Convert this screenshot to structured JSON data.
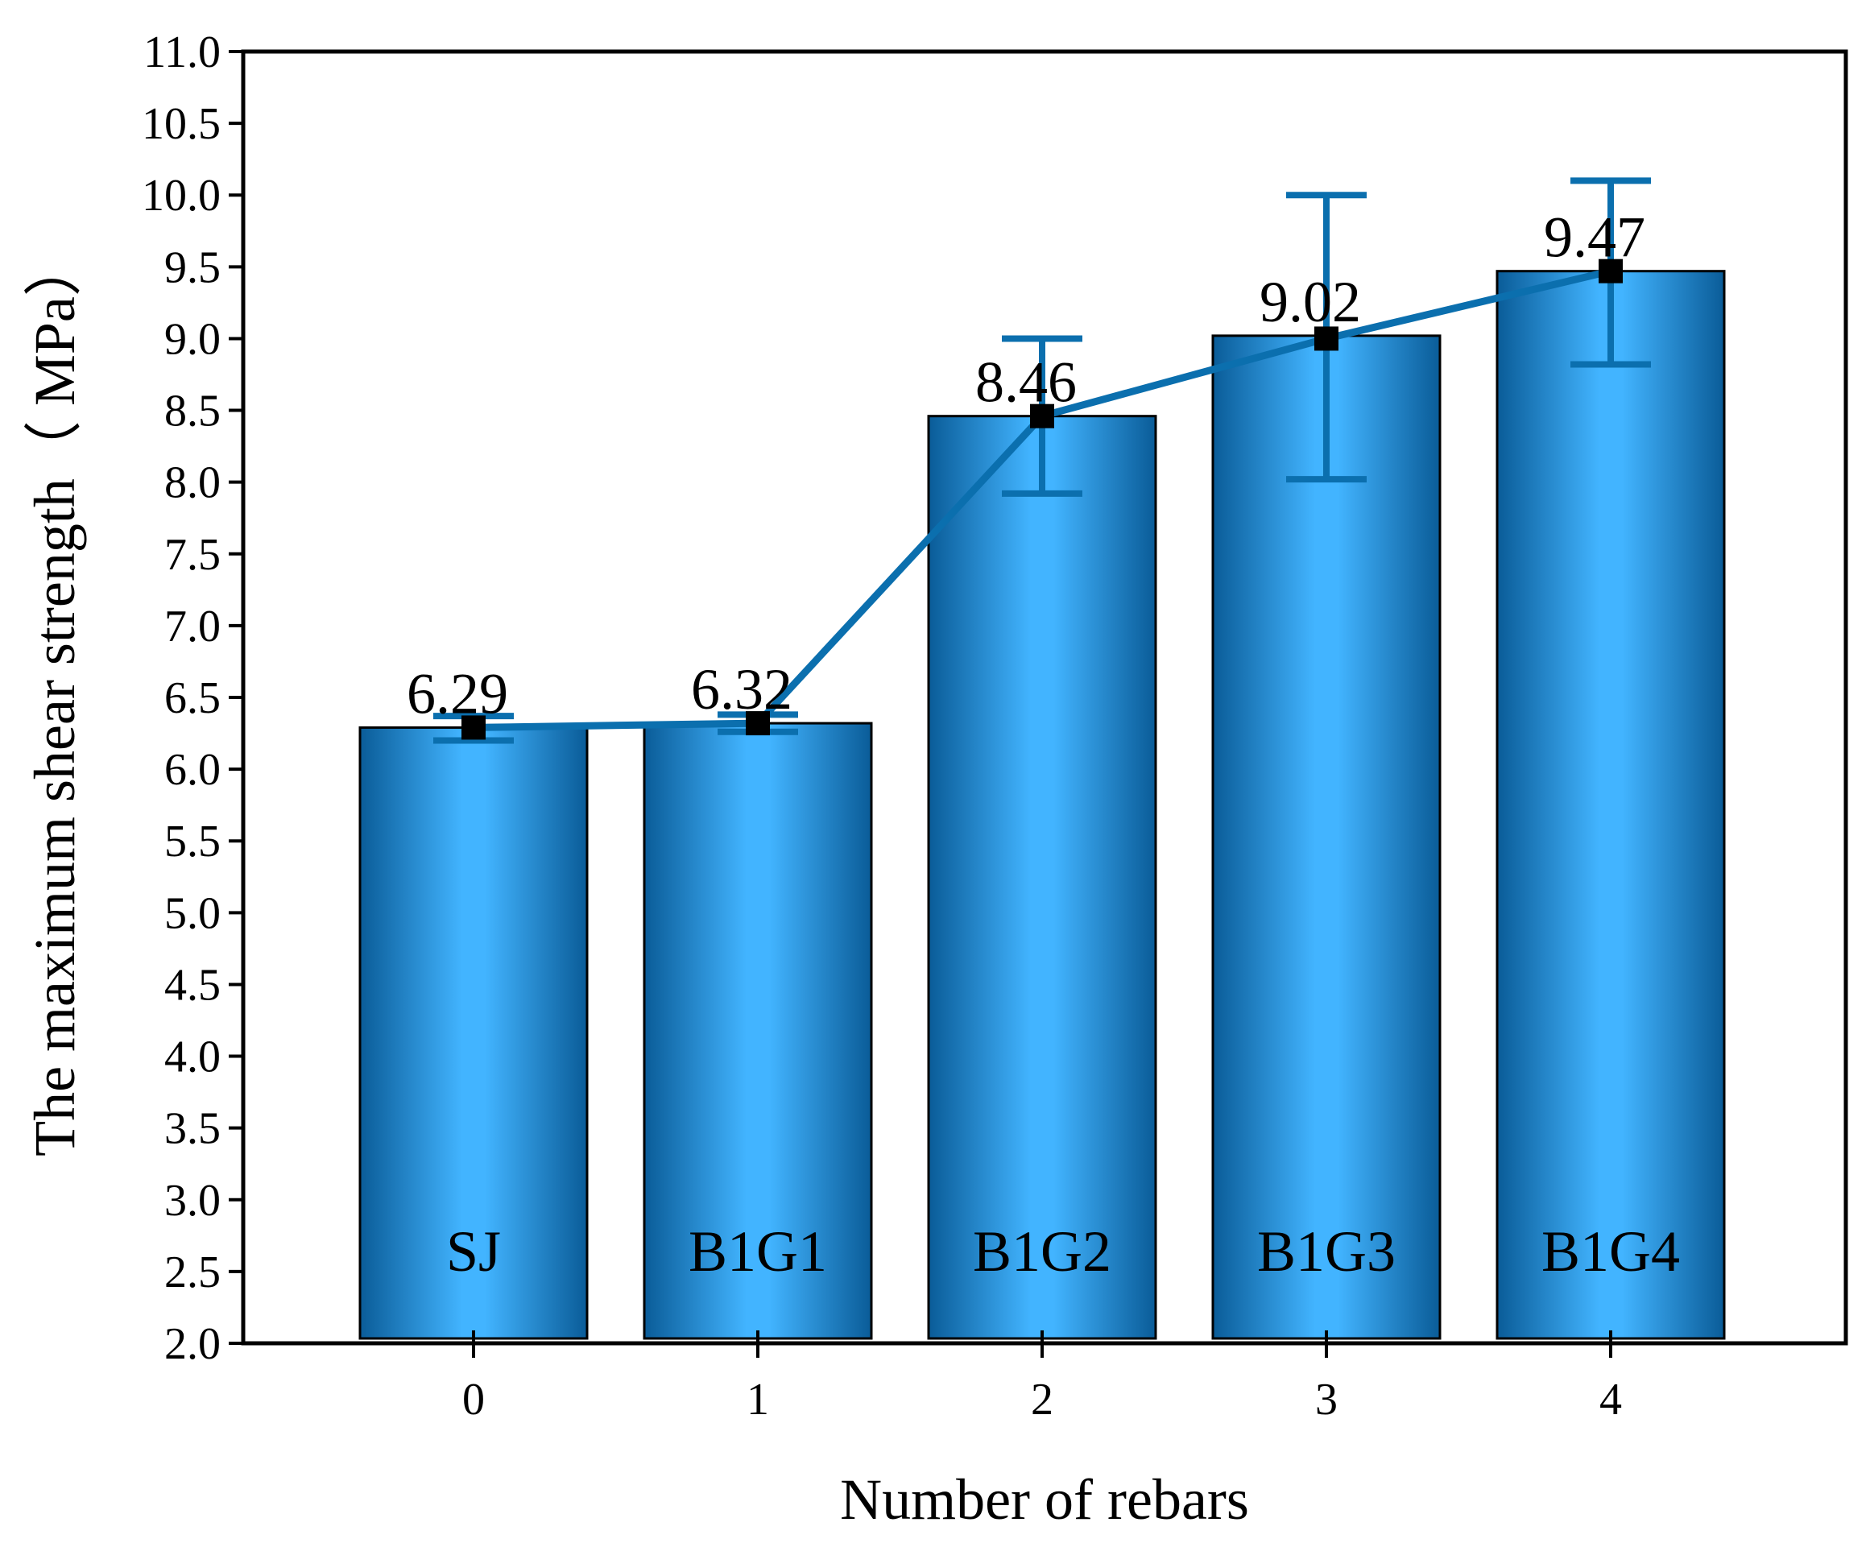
{
  "chart_data": {
    "type": "bar",
    "title": "",
    "xlabel": "Number of rebars",
    "ylabel": "The maximum shear strength（ MPa）",
    "x_ticks": [
      "0",
      "1",
      "2",
      "3",
      "4"
    ],
    "bar_names": [
      "SJ",
      "B1G1",
      "B1G2",
      "B1G3",
      "B1G4"
    ],
    "values": [
      6.29,
      6.32,
      8.46,
      9.02,
      9.47
    ],
    "value_labels": [
      "6.29",
      "6.32",
      "8.46",
      "9.02",
      "9.47"
    ],
    "line_values": [
      6.29,
      6.32,
      8.46,
      9.0,
      9.47
    ],
    "error_low": [
      6.2,
      6.26,
      7.92,
      8.02,
      8.82
    ],
    "error_high": [
      6.37,
      6.38,
      9.0,
      10.0,
      10.1
    ],
    "ylim": [
      2.0,
      11.0
    ],
    "y_ticks": [
      "2.0",
      "2.5",
      "3.0",
      "3.5",
      "4.0",
      "4.5",
      "5.0",
      "5.5",
      "6.0",
      "6.5",
      "7.0",
      "7.5",
      "8.0",
      "8.5",
      "9.0",
      "9.5",
      "10.0",
      "10.5",
      "11.0"
    ],
    "grid": false,
    "colors": {
      "bar_edge": "#0a5c98",
      "bar_center": "#42b4ff",
      "line": "#0b6fae",
      "marker": "#000000"
    }
  }
}
